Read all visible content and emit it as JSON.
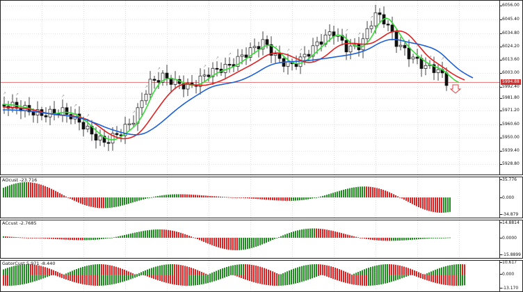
{
  "price_axis_labels": [
    "6056.00",
    "6045.40",
    "6034.80",
    "6024.20",
    "6013.60",
    "6003.00",
    "5992.40",
    "5981.80",
    "5971.20",
    "5960.60",
    "5950.00",
    "5939.40",
    "5928.80"
  ],
  "current_price": "5994.88",
  "indicator_ao": {
    "label": "AOcust -23.716",
    "axis_labels": [
      "35.776",
      "0.000",
      "-34.879"
    ]
  },
  "indicator_ac": {
    "label": "ACcust -2.7685",
    "axis_labels": [
      "14.8814",
      "0.0000",
      "-15.8899"
    ]
  },
  "indicator_gator": {
    "label": "GatorCust 5.971 -8.440",
    "axis_labels": [
      "10.617",
      "0.000",
      "-13.170"
    ]
  },
  "colors": {
    "bull_bar": "#1e8c1e",
    "bear_bar": "#e02020",
    "fast_ma": "#33dd33",
    "mid_ma": "#e02020",
    "slow_ma": "#1a5fd6",
    "price_line": "#e05050",
    "arrow": "#e04040"
  }
}
